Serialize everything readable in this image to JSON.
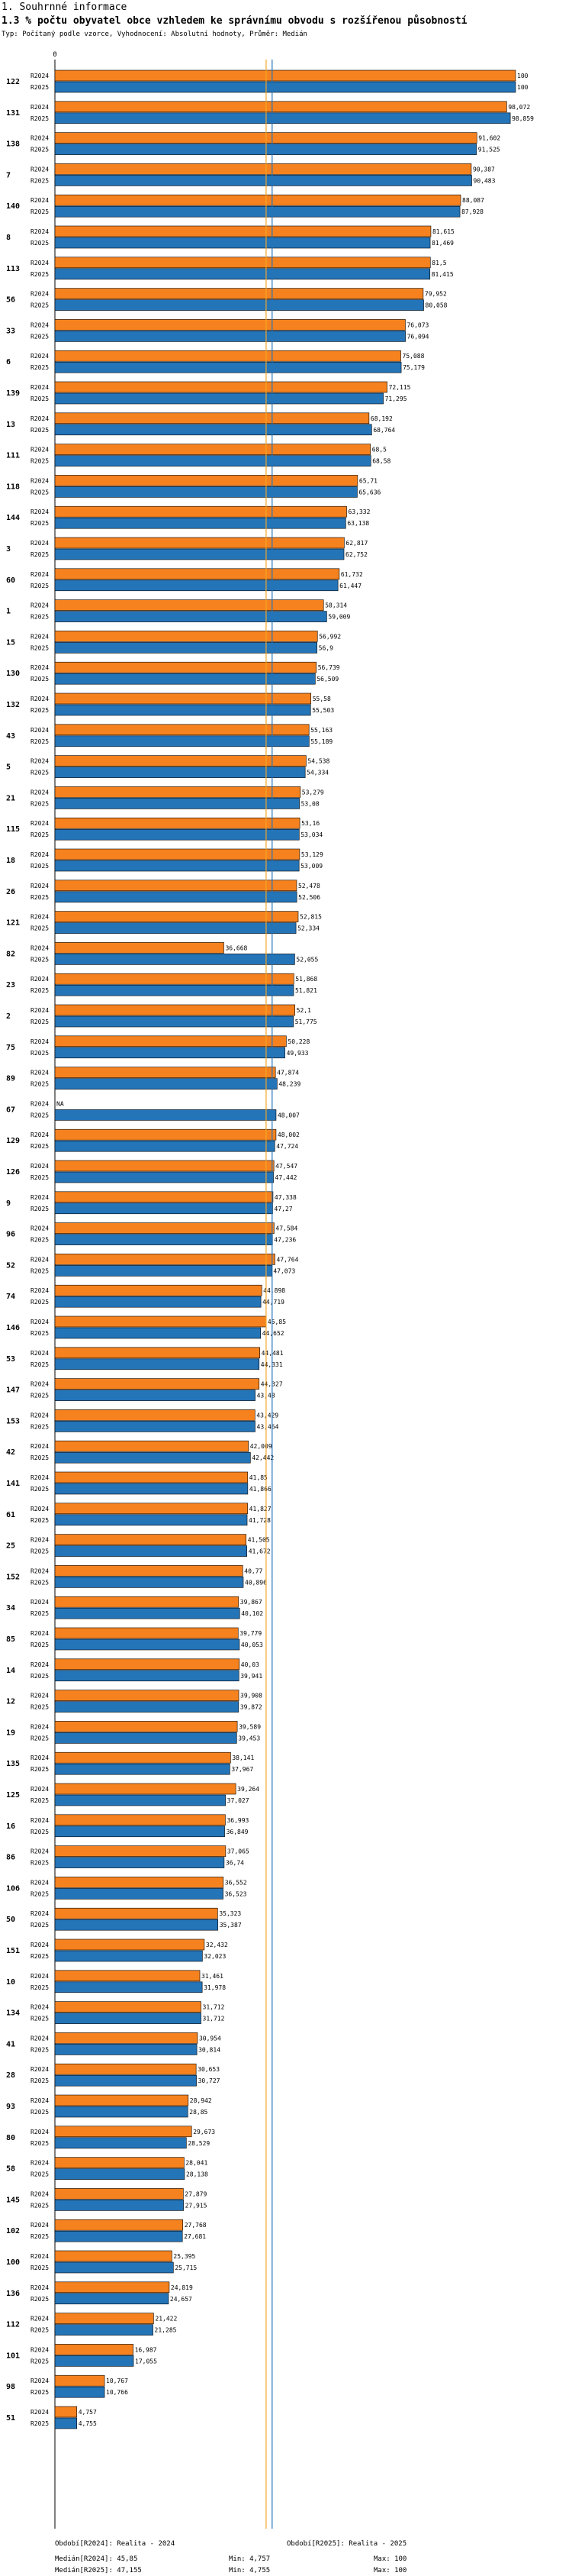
{
  "header": {
    "section": "1. Souhrnné informace",
    "title": "1.3 % počtu obyvatel obce vzhledem ke správnímu obvodu s rozšířenou působností",
    "subtitle": "Typ: Počítaný podle vzorce, Vyhodnocení: Absolutní hodnoty, Průměr: Medián"
  },
  "chart_data": {
    "type": "bar",
    "orientation": "horizontal",
    "axis_tick_label": "0",
    "xlim": [
      0,
      100
    ],
    "series_labels": [
      "R2024",
      "R2025"
    ],
    "colors": {
      "R2024": "#f5821f",
      "R2025": "#2474b8",
      "median2024": "#f5a623",
      "median2025": "#2474b8"
    },
    "medians": {
      "R2024": 45.85,
      "R2025": 47.155
    },
    "categories": [
      {
        "id": "122",
        "r2024": 100,
        "l2024": "100",
        "r2025": 100,
        "l2025": "100"
      },
      {
        "id": "131",
        "r2024": 98.072,
        "l2024": "98,072",
        "r2025": 98.859,
        "l2025": "98,859"
      },
      {
        "id": "138",
        "r2024": 91.602,
        "l2024": "91,602",
        "r2025": 91.525,
        "l2025": "91,525"
      },
      {
        "id": "7",
        "r2024": 90.387,
        "l2024": "90,387",
        "r2025": 90.483,
        "l2025": "90,483"
      },
      {
        "id": "140",
        "r2024": 88.087,
        "l2024": "88,087",
        "r2025": 87.928,
        "l2025": "87,928"
      },
      {
        "id": "8",
        "r2024": 81.615,
        "l2024": "81,615",
        "r2025": 81.469,
        "l2025": "81,469"
      },
      {
        "id": "113",
        "r2024": 81.5,
        "l2024": "81,5",
        "r2025": 81.415,
        "l2025": "81,415"
      },
      {
        "id": "56",
        "r2024": 79.952,
        "l2024": "79,952",
        "r2025": 80.058,
        "l2025": "80,058"
      },
      {
        "id": "33",
        "r2024": 76.073,
        "l2024": "76,073",
        "r2025": 76.094,
        "l2025": "76,094"
      },
      {
        "id": "6",
        "r2024": 75.088,
        "l2024": "75,088",
        "r2025": 75.179,
        "l2025": "75,179"
      },
      {
        "id": "139",
        "r2024": 72.115,
        "l2024": "72,115",
        "r2025": 71.295,
        "l2025": "71,295"
      },
      {
        "id": "13",
        "r2024": 68.192,
        "l2024": "68,192",
        "r2025": 68.764,
        "l2025": "68,764"
      },
      {
        "id": "111",
        "r2024": 68.5,
        "l2024": "68,5",
        "r2025": 68.58,
        "l2025": "68,58"
      },
      {
        "id": "118",
        "r2024": 65.71,
        "l2024": "65,71",
        "r2025": 65.636,
        "l2025": "65,636"
      },
      {
        "id": "144",
        "r2024": 63.332,
        "l2024": "63,332",
        "r2025": 63.138,
        "l2025": "63,138"
      },
      {
        "id": "3",
        "r2024": 62.817,
        "l2024": "62,817",
        "r2025": 62.752,
        "l2025": "62,752"
      },
      {
        "id": "60",
        "r2024": 61.732,
        "l2024": "61,732",
        "r2025": 61.447,
        "l2025": "61,447"
      },
      {
        "id": "1",
        "r2024": 58.314,
        "l2024": "58,314",
        "r2025": 59.009,
        "l2025": "59,009"
      },
      {
        "id": "15",
        "r2024": 56.992,
        "l2024": "56,992",
        "r2025": 56.9,
        "l2025": "56,9"
      },
      {
        "id": "130",
        "r2024": 56.739,
        "l2024": "56,739",
        "r2025": 56.509,
        "l2025": "56,509"
      },
      {
        "id": "132",
        "r2024": 55.58,
        "l2024": "55,58",
        "r2025": 55.503,
        "l2025": "55,503"
      },
      {
        "id": "43",
        "r2024": 55.163,
        "l2024": "55,163",
        "r2025": 55.189,
        "l2025": "55,189"
      },
      {
        "id": "5",
        "r2024": 54.538,
        "l2024": "54,538",
        "r2025": 54.334,
        "l2025": "54,334"
      },
      {
        "id": "21",
        "r2024": 53.279,
        "l2024": "53,279",
        "r2025": 53.08,
        "l2025": "53,08"
      },
      {
        "id": "115",
        "r2024": 53.16,
        "l2024": "53,16",
        "r2025": 53.034,
        "l2025": "53,034"
      },
      {
        "id": "18",
        "r2024": 53.129,
        "l2024": "53,129",
        "r2025": 53.009,
        "l2025": "53,009"
      },
      {
        "id": "26",
        "r2024": 52.478,
        "l2024": "52,478",
        "r2025": 52.506,
        "l2025": "52,506"
      },
      {
        "id": "121",
        "r2024": 52.815,
        "l2024": "52,815",
        "r2025": 52.334,
        "l2025": "52,334"
      },
      {
        "id": "82",
        "r2024": 36.668,
        "l2024": "36,668",
        "r2025": 52.055,
        "l2025": "52,055"
      },
      {
        "id": "23",
        "r2024": 51.868,
        "l2024": "51,868",
        "r2025": 51.821,
        "l2025": "51,821"
      },
      {
        "id": "2",
        "r2024": 52.1,
        "l2024": "52,1",
        "r2025": 51.775,
        "l2025": "51,775"
      },
      {
        "id": "75",
        "r2024": 50.228,
        "l2024": "50,228",
        "r2025": 49.933,
        "l2025": "49,933"
      },
      {
        "id": "89",
        "r2024": 47.874,
        "l2024": "47,874",
        "r2025": 48.239,
        "l2025": "48,239"
      },
      {
        "id": "67",
        "r2024": null,
        "l2024": "NA",
        "r2025": 48.007,
        "l2025": "48,007"
      },
      {
        "id": "129",
        "r2024": 48.002,
        "l2024": "48,002",
        "r2025": 47.724,
        "l2025": "47,724"
      },
      {
        "id": "126",
        "r2024": 47.547,
        "l2024": "47,547",
        "r2025": 47.442,
        "l2025": "47,442"
      },
      {
        "id": "9",
        "r2024": 47.338,
        "l2024": "47,338",
        "r2025": 47.27,
        "l2025": "47,27"
      },
      {
        "id": "96",
        "r2024": 47.584,
        "l2024": "47,584",
        "r2025": 47.236,
        "l2025": "47,236"
      },
      {
        "id": "52",
        "r2024": 47.764,
        "l2024": "47,764",
        "r2025": 47.073,
        "l2025": "47,073"
      },
      {
        "id": "74",
        "r2024": 44.898,
        "l2024": "44,898",
        "r2025": 44.719,
        "l2025": "44,719"
      },
      {
        "id": "146",
        "r2024": 45.85,
        "l2024": "45,85",
        "r2025": 44.652,
        "l2025": "44,652"
      },
      {
        "id": "53",
        "r2024": 44.481,
        "l2024": "44,481",
        "r2025": 44.331,
        "l2025": "44,331"
      },
      {
        "id": "147",
        "r2024": 44.327,
        "l2024": "44,327",
        "r2025": 43.48,
        "l2025": "43,48"
      },
      {
        "id": "153",
        "r2024": 43.429,
        "l2024": "43,429",
        "r2025": 43.464,
        "l2025": "43,464"
      },
      {
        "id": "42",
        "r2024": 42.009,
        "l2024": "42,009",
        "r2025": 42.442,
        "l2025": "42,442"
      },
      {
        "id": "141",
        "r2024": 41.85,
        "l2024": "41,85",
        "r2025": 41.866,
        "l2025": "41,866"
      },
      {
        "id": "61",
        "r2024": 41.827,
        "l2024": "41,827",
        "r2025": 41.728,
        "l2025": "41,728"
      },
      {
        "id": "25",
        "r2024": 41.505,
        "l2024": "41,505",
        "r2025": 41.672,
        "l2025": "41,672"
      },
      {
        "id": "152",
        "r2024": 40.77,
        "l2024": "40,77",
        "r2025": 40.896,
        "l2025": "40,896"
      },
      {
        "id": "34",
        "r2024": 39.867,
        "l2024": "39,867",
        "r2025": 40.102,
        "l2025": "40,102"
      },
      {
        "id": "85",
        "r2024": 39.779,
        "l2024": "39,779",
        "r2025": 40.053,
        "l2025": "40,053"
      },
      {
        "id": "14",
        "r2024": 40.03,
        "l2024": "40,03",
        "r2025": 39.941,
        "l2025": "39,941"
      },
      {
        "id": "12",
        "r2024": 39.908,
        "l2024": "39,908",
        "r2025": 39.872,
        "l2025": "39,872"
      },
      {
        "id": "19",
        "r2024": 39.589,
        "l2024": "39,589",
        "r2025": 39.453,
        "l2025": "39,453"
      },
      {
        "id": "135",
        "r2024": 38.141,
        "l2024": "38,141",
        "r2025": 37.967,
        "l2025": "37,967"
      },
      {
        "id": "125",
        "r2024": 39.264,
        "l2024": "39,264",
        "r2025": 37.027,
        "l2025": "37,027"
      },
      {
        "id": "16",
        "r2024": 36.993,
        "l2024": "36,993",
        "r2025": 36.849,
        "l2025": "36,849"
      },
      {
        "id": "86",
        "r2024": 37.065,
        "l2024": "37,065",
        "r2025": 36.74,
        "l2025": "36,74"
      },
      {
        "id": "106",
        "r2024": 36.552,
        "l2024": "36,552",
        "r2025": 36.523,
        "l2025": "36,523"
      },
      {
        "id": "50",
        "r2024": 35.323,
        "l2024": "35,323",
        "r2025": 35.387,
        "l2025": "35,387"
      },
      {
        "id": "151",
        "r2024": 32.432,
        "l2024": "32,432",
        "r2025": 32.023,
        "l2025": "32,023"
      },
      {
        "id": "10",
        "r2024": 31.461,
        "l2024": "31,461",
        "r2025": 31.978,
        "l2025": "31,978"
      },
      {
        "id": "134",
        "r2024": 31.712,
        "l2024": "31,712",
        "r2025": 31.712,
        "l2025": "31,712"
      },
      {
        "id": "41",
        "r2024": 30.954,
        "l2024": "30,954",
        "r2025": 30.814,
        "l2025": "30,814"
      },
      {
        "id": "28",
        "r2024": 30.653,
        "l2024": "30,653",
        "r2025": 30.727,
        "l2025": "30,727"
      },
      {
        "id": "93",
        "r2024": 28.942,
        "l2024": "28,942",
        "r2025": 28.85,
        "l2025": "28,85"
      },
      {
        "id": "80",
        "r2024": 29.673,
        "l2024": "29,673",
        "r2025": 28.529,
        "l2025": "28,529"
      },
      {
        "id": "58",
        "r2024": 28.041,
        "l2024": "28,041",
        "r2025": 28.138,
        "l2025": "28,138"
      },
      {
        "id": "145",
        "r2024": 27.879,
        "l2024": "27,879",
        "r2025": 27.915,
        "l2025": "27,915"
      },
      {
        "id": "102",
        "r2024": 27.768,
        "l2024": "27,768",
        "r2025": 27.681,
        "l2025": "27,681"
      },
      {
        "id": "100",
        "r2024": 25.395,
        "l2024": "25,395",
        "r2025": 25.715,
        "l2025": "25,715"
      },
      {
        "id": "136",
        "r2024": 24.819,
        "l2024": "24,819",
        "r2025": 24.657,
        "l2025": "24,657"
      },
      {
        "id": "112",
        "r2024": 21.422,
        "l2024": "21,422",
        "r2025": 21.285,
        "l2025": "21,285"
      },
      {
        "id": "101",
        "r2024": 16.987,
        "l2024": "16,987",
        "r2025": 17.055,
        "l2025": "17,055"
      },
      {
        "id": "98",
        "r2024": 10.767,
        "l2024": "10,767",
        "r2025": 10.766,
        "l2025": "10,766"
      },
      {
        "id": "51",
        "r2024": 4.757,
        "l2024": "4,757",
        "r2025": 4.755,
        "l2025": "4,755"
      }
    ]
  },
  "footer": {
    "col1": [
      "Období[R2024]: Realita - 2024",
      "Medián[R2024]: 45,85",
      "Medián[R2025]: 47,155"
    ],
    "col2": [
      "Min: 4,757",
      "Min: 4,755"
    ],
    "col3": [
      "Období[R2025]: Realita - 2025",
      "Max: 100",
      "Max: 100"
    ]
  }
}
